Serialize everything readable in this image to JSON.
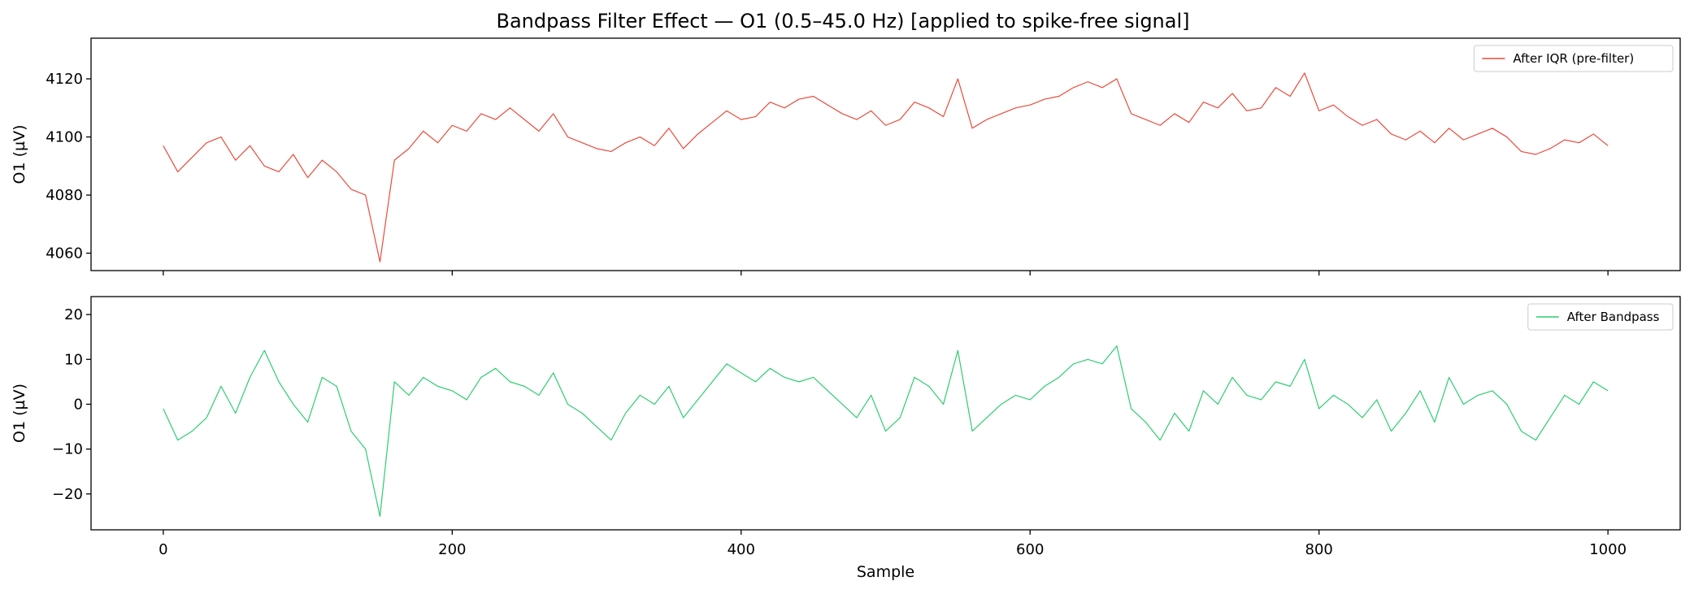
{
  "figure": {
    "title": "Bandpass Filter Effect — O1 (0.5–45.0 Hz) [applied to spike-free signal]"
  },
  "chart_data": [
    {
      "type": "line",
      "title": "Bandpass Filter Effect — O1 (0.5–45.0 Hz) [applied to spike-free signal]",
      "xlabel": "",
      "ylabel": "O1 (µV)",
      "xlim": [
        -50,
        1050
      ],
      "ylim": [
        4054,
        4134
      ],
      "x_ticks": [
        0,
        200,
        400,
        600,
        800,
        1000
      ],
      "x_tick_labels_shown": false,
      "y_ticks": [
        4060,
        4080,
        4100,
        4120
      ],
      "legend_position": "upper right",
      "grid": false,
      "series": [
        {
          "name": "After IQR (pre-filter)",
          "color": "#e74c3c",
          "x_start": 0,
          "x_step": 10,
          "values": [
            4097,
            4088,
            4093,
            4098,
            4100,
            4092,
            4097,
            4090,
            4088,
            4094,
            4086,
            4092,
            4088,
            4082,
            4080,
            4057,
            4092,
            4096,
            4102,
            4098,
            4104,
            4102,
            4108,
            4106,
            4110,
            4106,
            4102,
            4108,
            4100,
            4098,
            4096,
            4095,
            4098,
            4100,
            4097,
            4103,
            4096,
            4101,
            4105,
            4109,
            4106,
            4107,
            4112,
            4110,
            4113,
            4114,
            4111,
            4108,
            4106,
            4109,
            4104,
            4106,
            4112,
            4110,
            4107,
            4120,
            4103,
            4106,
            4108,
            4110,
            4111,
            4113,
            4114,
            4117,
            4119,
            4117,
            4120,
            4108,
            4106,
            4104,
            4108,
            4105,
            4112,
            4110,
            4115,
            4109,
            4110,
            4117,
            4114,
            4122,
            4109,
            4111,
            4107,
            4104,
            4106,
            4101,
            4099,
            4102,
            4098,
            4103,
            4099,
            4101,
            4103,
            4100,
            4095,
            4094,
            4096,
            4099,
            4098,
            4101,
            4097
          ]
        }
      ]
    },
    {
      "type": "line",
      "title": "",
      "xlabel": "Sample",
      "ylabel": "O1 (µV)",
      "xlim": [
        -50,
        1050
      ],
      "ylim": [
        -28,
        24
      ],
      "x_ticks": [
        0,
        200,
        400,
        600,
        800,
        1000
      ],
      "y_ticks": [
        -20,
        -10,
        0,
        10,
        20
      ],
      "legend_position": "upper right",
      "grid": false,
      "series": [
        {
          "name": "After Bandpass",
          "color": "#2ecc71",
          "x_start": 0,
          "x_step": 10,
          "values": [
            -1,
            -8,
            -6,
            -3,
            4,
            -2,
            6,
            12,
            5,
            0,
            -4,
            6,
            4,
            -6,
            -10,
            -25,
            5,
            2,
            6,
            4,
            3,
            1,
            6,
            8,
            5,
            4,
            2,
            7,
            0,
            -2,
            -5,
            -8,
            -2,
            2,
            0,
            4,
            -3,
            1,
            5,
            9,
            7,
            5,
            8,
            6,
            5,
            6,
            3,
            0,
            -3,
            2,
            -6,
            -3,
            6,
            4,
            0,
            12,
            -6,
            -3,
            0,
            2,
            1,
            4,
            6,
            9,
            10,
            9,
            13,
            -1,
            -4,
            -8,
            -2,
            -6,
            3,
            0,
            6,
            2,
            1,
            5,
            4,
            10,
            -1,
            2,
            0,
            -3,
            1,
            -6,
            -2,
            3,
            -4,
            6,
            0,
            2,
            3,
            0,
            -6,
            -8,
            -3,
            2,
            0,
            5,
            3
          ]
        }
      ]
    }
  ]
}
